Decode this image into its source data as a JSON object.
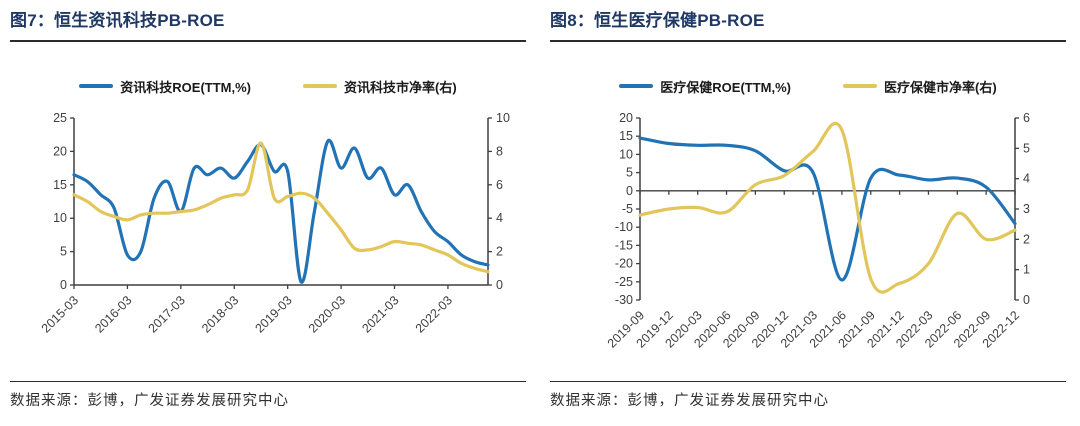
{
  "colors": {
    "title_navy": "#1f3864",
    "line_blue": "#2273b6",
    "line_yellow": "#e3c65b",
    "axis": "#3f3f3f",
    "rule_dark": "#2b2b2b"
  },
  "figures": [
    {
      "title": "图7：恒生资讯科技PB-ROE",
      "source": "数据来源：彭博，广发证券发展研究中心"
    },
    {
      "title": "图8：恒生医疗保健PB-ROE",
      "source": "数据来源：彭博，广发证券发展研究中心"
    }
  ],
  "chart_data": [
    {
      "type": "line",
      "title": "恒生资讯科技PB-ROE",
      "grid": false,
      "legend_position": "top",
      "baseline": "bottom",
      "categories": [
        "2015-03",
        "2015-06",
        "2015-09",
        "2015-12",
        "2016-03",
        "2016-06",
        "2016-09",
        "2016-12",
        "2017-03",
        "2017-06",
        "2017-09",
        "2017-12",
        "2018-03",
        "2018-06",
        "2018-09",
        "2018-12",
        "2019-03",
        "2019-06",
        "2019-09",
        "2019-12",
        "2020-03",
        "2020-06",
        "2020-09",
        "2020-12",
        "2021-03",
        "2021-06",
        "2021-09",
        "2021-12",
        "2022-03",
        "2022-06",
        "2022-09",
        "2022-12"
      ],
      "labeled_indices": [
        0,
        4,
        8,
        12,
        16,
        20,
        24,
        28
      ],
      "x_tick_labels": [
        "2015-03",
        "2016-03",
        "2017-03",
        "2018-03",
        "2019-03",
        "2020-03",
        "2021-03",
        "2022-03"
      ],
      "left_axis": {
        "min": 0,
        "max": 25,
        "step": 5
      },
      "right_axis": {
        "min": 0,
        "max": 10,
        "step": 2
      },
      "series": [
        {
          "name": "资讯科技ROE(TTM,%)",
          "axis": "left",
          "color": "#2273b6",
          "values": [
            16.5,
            15.5,
            13.5,
            11.5,
            4.5,
            5,
            13,
            15.5,
            11,
            17.5,
            16.5,
            17.5,
            16,
            18.5,
            21,
            17,
            17,
            0.5,
            11,
            21.5,
            17.5,
            20.5,
            16,
            17.5,
            13.5,
            15,
            11,
            8,
            6.5,
            4.5,
            3.5,
            3
          ]
        },
        {
          "name": "资讯科技市净率(右)",
          "axis": "right",
          "color": "#e3c65b",
          "values": [
            5.4,
            5.0,
            4.4,
            4.1,
            3.9,
            4.2,
            4.3,
            4.3,
            4.4,
            4.5,
            4.8,
            5.2,
            5.4,
            5.7,
            8.5,
            5.2,
            5.3,
            5.5,
            5.2,
            4.3,
            3.3,
            2.2,
            2.1,
            2.3,
            2.6,
            2.5,
            2.4,
            2.1,
            1.8,
            1.3,
            1.0,
            0.8
          ]
        }
      ]
    },
    {
      "type": "line",
      "title": "恒生医疗保健PB-ROE",
      "grid": false,
      "legend_position": "top",
      "baseline": "zero",
      "categories": [
        "2019-09",
        "2019-12",
        "2020-03",
        "2020-06",
        "2020-09",
        "2020-12",
        "2021-03",
        "2021-06",
        "2021-09",
        "2021-12",
        "2022-03",
        "2022-06",
        "2022-09",
        "2022-12"
      ],
      "labeled_indices": [
        0,
        1,
        2,
        3,
        4,
        5,
        6,
        7,
        8,
        9,
        10,
        11,
        12,
        13
      ],
      "x_tick_labels": [
        "2019-09",
        "2019-12",
        "2020-03",
        "2020-06",
        "2020-09",
        "2020-12",
        "2021-03",
        "2021-06",
        "2021-09",
        "2021-12",
        "2022-03",
        "2022-06",
        "2022-09",
        "2022-12"
      ],
      "left_axis": {
        "min": -30,
        "max": 20,
        "step": 5
      },
      "right_axis": {
        "min": 0,
        "max": 6,
        "step": 1
      },
      "series": [
        {
          "name": "医疗保健ROE(TTM,%)",
          "axis": "left",
          "color": "#2273b6",
          "values": [
            14.5,
            13,
            12.5,
            12.5,
            11,
            5.5,
            5,
            -24.5,
            3.5,
            4.3,
            3,
            3.5,
            1,
            -9
          ]
        },
        {
          "name": "医疗保健市净率(右)",
          "axis": "right",
          "color": "#e3c65b",
          "values": [
            2.8,
            3.0,
            3.05,
            2.9,
            3.8,
            4.1,
            4.9,
            5.6,
            0.7,
            0.55,
            1.2,
            2.85,
            2.0,
            2.3
          ]
        }
      ]
    }
  ]
}
